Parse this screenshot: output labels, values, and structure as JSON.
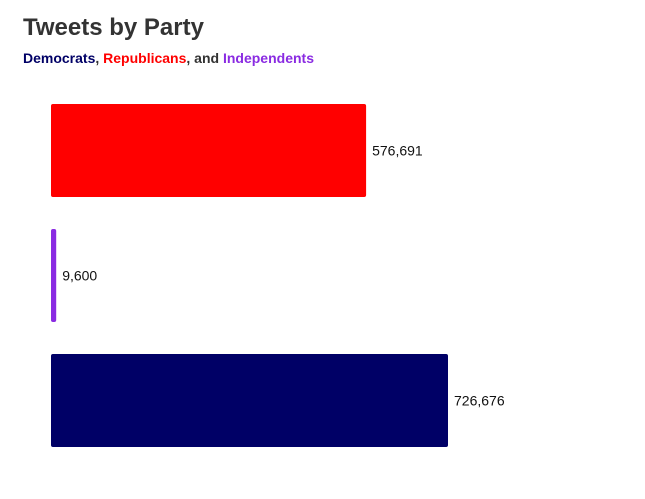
{
  "title": "Tweets by Party",
  "subtitle": {
    "parts": [
      {
        "text": "Democrats",
        "color": "#000066"
      },
      {
        "text": ", ",
        "color": "#333333"
      },
      {
        "text": "Republicans",
        "color": "#ff0000"
      },
      {
        "text": ", and ",
        "color": "#333333"
      },
      {
        "text": "Independents",
        "color": "#8a2be2"
      }
    ]
  },
  "chart_data": {
    "type": "bar",
    "orientation": "horizontal",
    "title": "Tweets by Party",
    "categories": [
      "Republicans",
      "Independents",
      "Democrats"
    ],
    "values": [
      576691,
      9600,
      726676
    ],
    "value_labels": [
      "576,691",
      "9,600",
      "726,676"
    ],
    "colors": [
      "#ff0000",
      "#8a2be2",
      "#000066"
    ],
    "xlim": [
      0,
      726676
    ],
    "grid": false,
    "legend": "subtitle"
  }
}
